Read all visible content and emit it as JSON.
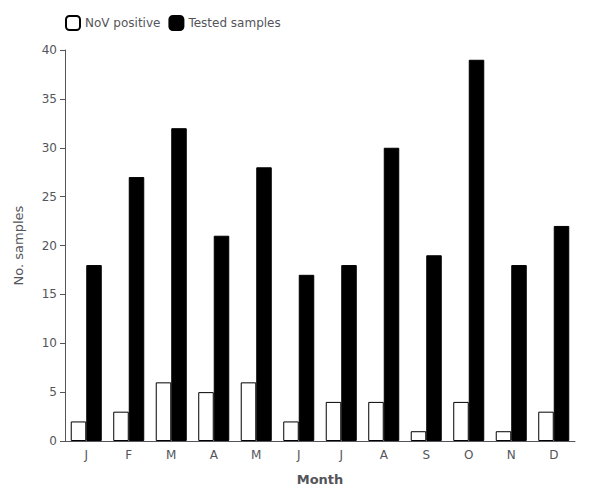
{
  "chart_data": {
    "type": "bar",
    "categories": [
      "J",
      "F",
      "M",
      "A",
      "M",
      "J",
      "J",
      "A",
      "S",
      "O",
      "N",
      "D"
    ],
    "series": [
      {
        "name": "NoV positive",
        "color": "#ffffff",
        "values": [
          2,
          3,
          6,
          5,
          6,
          2,
          4,
          4,
          1,
          4,
          1,
          3
        ]
      },
      {
        "name": "Tested samples",
        "color": "#000000",
        "values": [
          18,
          27,
          32,
          21,
          28,
          17,
          18,
          30,
          19,
          39,
          18,
          22
        ]
      }
    ],
    "xlabel": "Month",
    "ylabel": "No. samples",
    "ylim": [
      0,
      40
    ],
    "yticks": [
      0,
      5,
      10,
      15,
      20,
      25,
      30,
      35,
      40
    ],
    "grid": false,
    "legend": "upper left"
  }
}
